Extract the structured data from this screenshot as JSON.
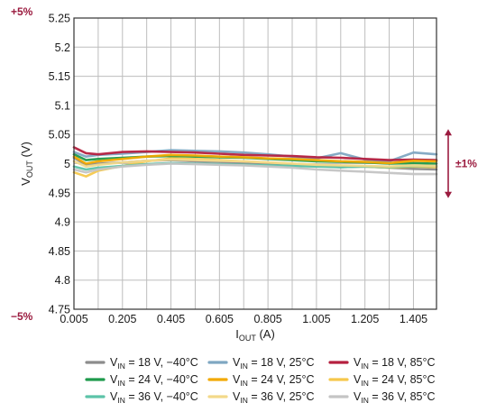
{
  "chart_data": {
    "type": "line",
    "xlabel": {
      "main": "I",
      "sub": "OUT",
      "suffix": " (A)"
    },
    "ylabel": {
      "main": "V",
      "sub": "OUT",
      "suffix": " (V)"
    },
    "xlim": [
      0.005,
      1.5
    ],
    "ylim": [
      4.75,
      5.25
    ],
    "x_ticks": [
      0.005,
      0.205,
      0.405,
      0.605,
      0.805,
      1.005,
      1.205,
      1.405
    ],
    "x_tick_labels": [
      "0.005",
      "0.205",
      "0.405",
      "0.605",
      "0.805",
      "1.005",
      "1.205",
      "1.405"
    ],
    "y_ticks": [
      4.75,
      4.8,
      4.85,
      4.9,
      4.95,
      5.0,
      5.05,
      5.1,
      5.15,
      5.2,
      5.25
    ],
    "y_tick_labels": [
      "4.75",
      "4.8",
      "4.85",
      "4.9",
      "4.95",
      "5",
      "5.05",
      "5.1",
      "5.15",
      "5.2",
      "5.25"
    ],
    "grid": true,
    "legend_position": "bottom",
    "annotations": {
      "plus5": "+5%",
      "minus5": "−5%",
      "band": "±1%",
      "band_range": [
        4.95,
        5.05
      ],
      "accent_color": "#9b1b3f"
    },
    "x": [
      0.005,
      0.055,
      0.105,
      0.205,
      0.305,
      0.405,
      0.505,
      0.605,
      0.705,
      0.805,
      0.905,
      1.005,
      1.105,
      1.205,
      1.305,
      1.405,
      1.5
    ],
    "series": [
      {
        "name": "18 V, −40°C",
        "color": "#8c8c8c",
        "values": [
          5.01,
          4.998,
          5.0,
          5.002,
          5.005,
          5.006,
          5.004,
          5.003,
          5.001,
          5.0,
          4.998,
          4.996,
          4.994,
          4.995,
          4.993,
          4.991,
          4.99
        ]
      },
      {
        "name": "18 V, 25°C",
        "color": "#7fa7c2",
        "values": [
          5.02,
          5.012,
          5.015,
          5.017,
          5.02,
          5.023,
          5.022,
          5.021,
          5.019,
          5.016,
          5.012,
          5.009,
          5.018,
          5.007,
          5.004,
          5.019,
          5.016
        ]
      },
      {
        "name": "18 V, 85°C",
        "color": "#b5203f",
        "values": [
          5.028,
          5.018,
          5.016,
          5.02,
          5.021,
          5.02,
          5.019,
          5.017,
          5.015,
          5.014,
          5.013,
          5.011,
          5.01,
          5.008,
          5.006,
          5.007,
          5.006
        ]
      },
      {
        "name": "24 V, −40°C",
        "color": "#1f9a4c",
        "values": [
          5.016,
          5.006,
          5.008,
          5.01,
          5.012,
          5.013,
          5.012,
          5.011,
          5.01,
          5.008,
          5.006,
          5.004,
          5.003,
          5.002,
          5.0,
          5.001,
          5.0
        ]
      },
      {
        "name": "24 V, 25°C",
        "color": "#f2a900",
        "values": [
          5.012,
          5.0,
          5.004,
          5.008,
          5.012,
          5.015,
          5.014,
          5.012,
          5.011,
          5.009,
          5.008,
          5.006,
          5.004,
          5.003,
          5.001,
          5.005,
          5.004
        ]
      },
      {
        "name": "24 V, 85°C",
        "color": "#f6c84c",
        "values": [
          4.985,
          4.978,
          4.988,
          4.996,
          5.004,
          5.009,
          5.008,
          5.006,
          5.004,
          5.002,
          5.0,
          4.998,
          4.996,
          4.995,
          4.993,
          4.995,
          4.994
        ]
      },
      {
        "name": "36 V, −40°C",
        "color": "#5cc3a8",
        "values": [
          4.995,
          4.99,
          4.993,
          4.996,
          4.999,
          5.001,
          5.0,
          4.999,
          4.998,
          4.997,
          4.996,
          4.995,
          4.994,
          4.995,
          4.994,
          4.996,
          4.996
        ]
      },
      {
        "name": "36 V, 25°C",
        "color": "#f3d98a",
        "values": [
          5.004,
          4.995,
          4.998,
          5.002,
          5.005,
          5.007,
          5.006,
          5.005,
          5.004,
          5.002,
          5.0,
          4.998,
          4.997,
          4.996,
          4.995,
          4.997,
          4.996
        ]
      },
      {
        "name": "36 V, 85°C",
        "color": "#c4c4c4",
        "values": [
          4.99,
          4.985,
          4.99,
          4.995,
          4.998,
          5.0,
          4.999,
          4.998,
          4.997,
          4.995,
          4.993,
          4.99,
          4.988,
          4.986,
          4.984,
          4.982,
          4.982
        ]
      }
    ],
    "legend": [
      {
        "prefix": "V",
        "sub": "IN",
        "rest": " = 18 V, −40°C"
      },
      {
        "prefix": "V",
        "sub": "IN",
        "rest": " = 18 V, 25°C"
      },
      {
        "prefix": "V",
        "sub": "IN",
        "rest": " = 18 V, 85°C"
      },
      {
        "prefix": "V",
        "sub": "IN",
        "rest": " = 24 V, −40°C"
      },
      {
        "prefix": "V",
        "sub": "IN",
        "rest": " = 24 V, 25°C"
      },
      {
        "prefix": "V",
        "sub": "IN",
        "rest": " = 24 V, 85°C"
      },
      {
        "prefix": "V",
        "sub": "IN",
        "rest": " = 36 V, −40°C"
      },
      {
        "prefix": "V",
        "sub": "IN",
        "rest": " = 36 V, 25°C"
      },
      {
        "prefix": "V",
        "sub": "IN",
        "rest": " = 36 V, 85°C"
      }
    ]
  }
}
